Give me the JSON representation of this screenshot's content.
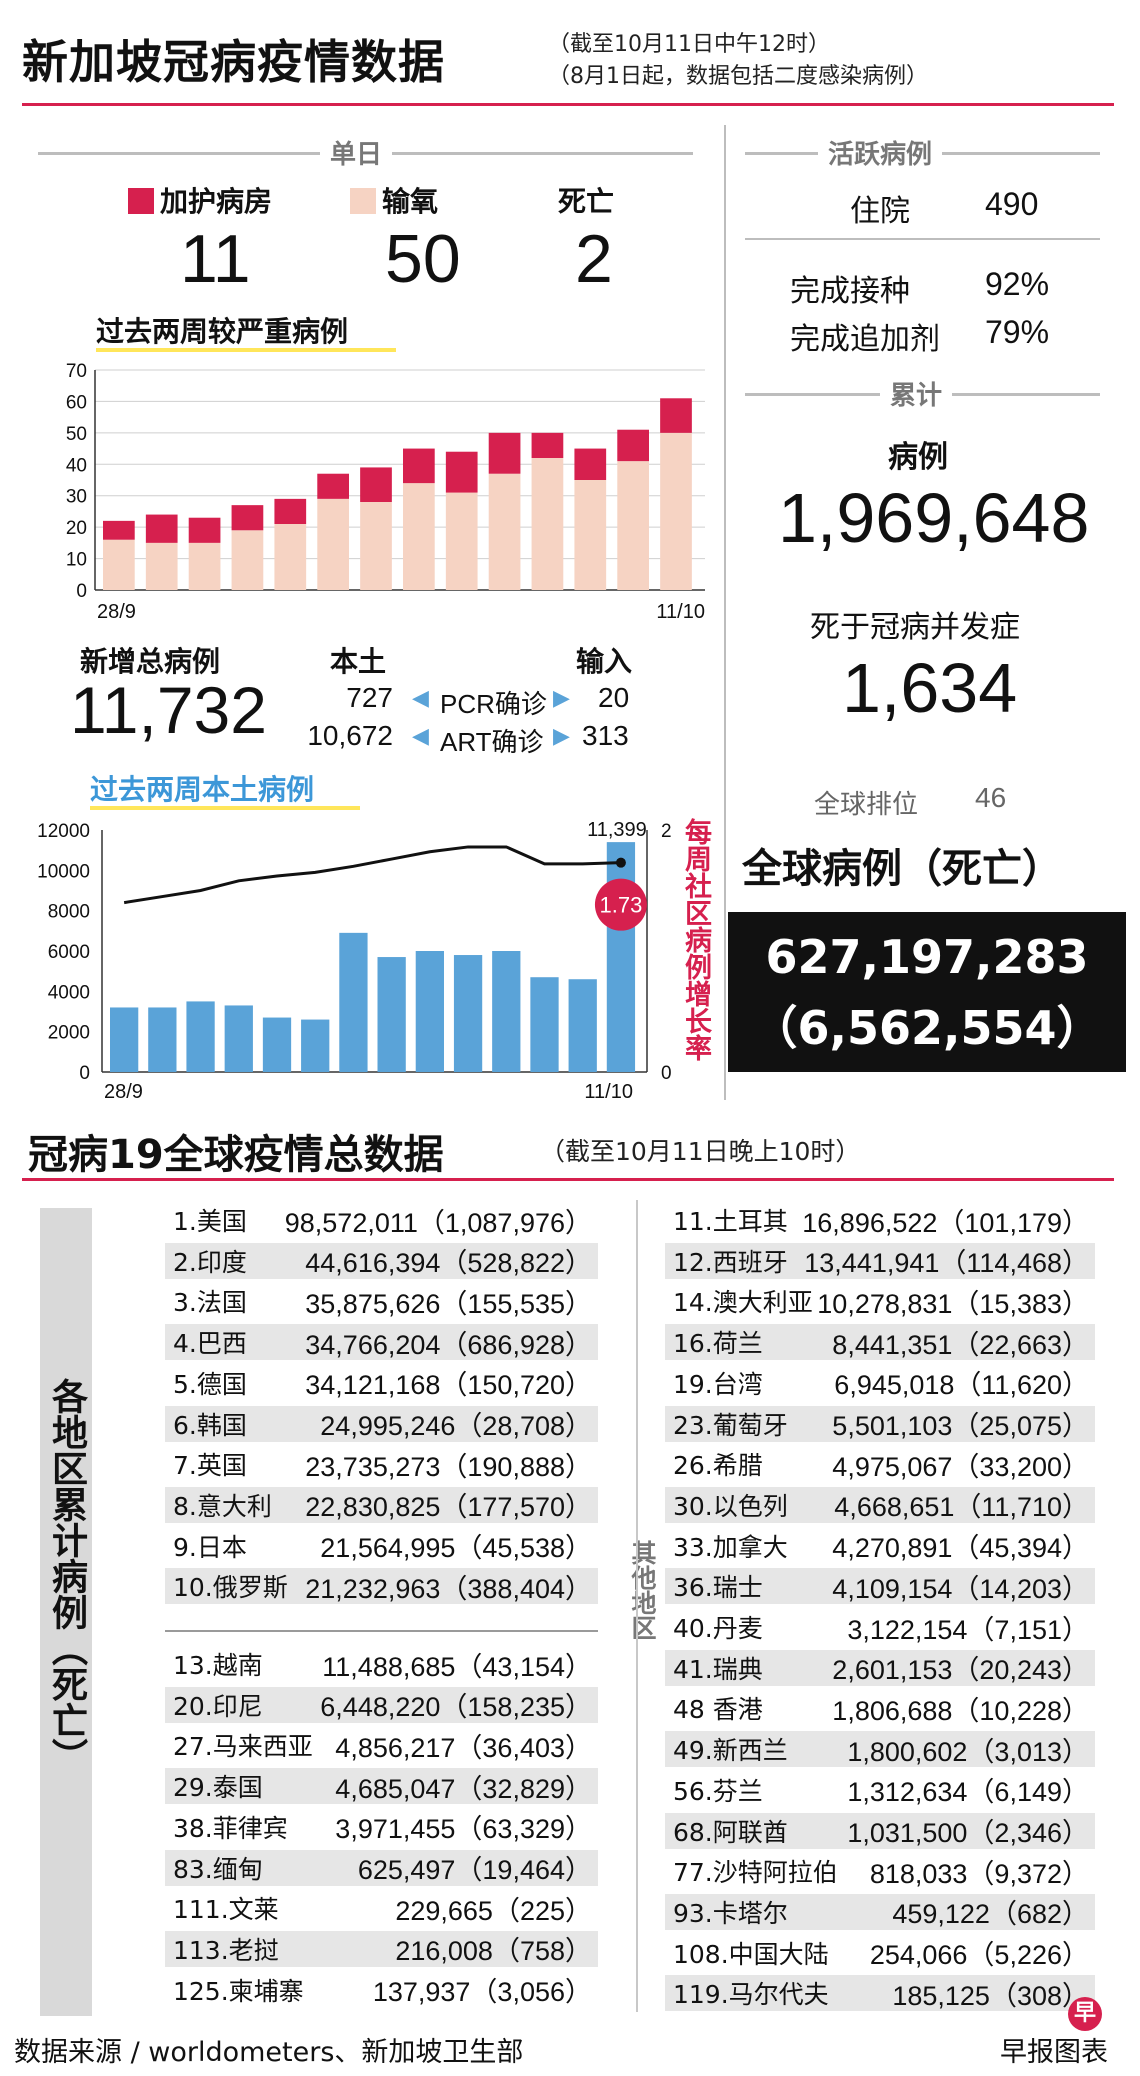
{
  "header": {
    "title": "新加坡冠病疫情数据",
    "note1": "（截至10月11日中午12时）",
    "note2": "（8月1日起，数据包括二度感染病例）"
  },
  "daily": {
    "heading": "单日",
    "icu_label": "加护病房",
    "icu_value": "11",
    "oxygen_label": "输氧",
    "oxygen_value": "50",
    "death_label": "死亡",
    "death_value": "2"
  },
  "colors": {
    "accent": "#d6204e",
    "oxygen": "#f6d3c3",
    "bar_blue": "#5aa3d8",
    "black": "#111111"
  },
  "severe_chart_title": "过去两周较严重病例",
  "local_chart_title": "过去两周本土病例",
  "growth_label": "每周社区病例增长率",
  "new_cases": {
    "label": "新增总病例",
    "value": "11,732",
    "local_label": "本土",
    "import_label": "输入",
    "pcr_label": "PCR确诊",
    "art_label": "ART确诊",
    "pcr_local": "727",
    "pcr_import": "20",
    "art_local": "10,672",
    "art_import": "313"
  },
  "active": {
    "heading": "活跃病例",
    "hosp_label": "住院",
    "hosp_value": "490",
    "vacc_label": "完成接种",
    "vacc_value": "92%",
    "booster_label": "完成追加剂",
    "booster_value": "79%"
  },
  "cumulative": {
    "heading": "累计",
    "cases_label": "病例",
    "cases_value": "1,969,648",
    "deaths_label": "死于冠病并发症",
    "deaths_value": "1,634",
    "rank_label": "全球排位",
    "rank_value": "46"
  },
  "global": {
    "label": "全球病例（死亡）",
    "cases": "627,197,283",
    "deaths": "（6,562,554）"
  },
  "world": {
    "title": "冠病19全球疫情总数据",
    "note": "（截至10月11日晚上10时）",
    "side_label": "各地区累计病例（死亡）",
    "asia_label": "亚细安",
    "other_label": "其他地区",
    "top10": [
      {
        "name": "1.美国",
        "value": "98,572,011（1,087,976）"
      },
      {
        "name": "2.印度",
        "value": "44,616,394（528,822）"
      },
      {
        "name": "3.法国",
        "value": "35,875,626（155,535）"
      },
      {
        "name": "4.巴西",
        "value": "34,766,204（686,928）"
      },
      {
        "name": "5.德国",
        "value": "34,121,168（150,720）"
      },
      {
        "name": "6.韩国",
        "value": "24,995,246（28,708）"
      },
      {
        "name": "7.英国",
        "value": "23,735,273（190,888）"
      },
      {
        "name": "8.意大利",
        "value": "22,830,825（177,570）"
      },
      {
        "name": "9.日本",
        "value": "21,564,995（45,538）"
      },
      {
        "name": "10.俄罗斯",
        "value": "21,232,963（388,404）"
      }
    ],
    "asean": [
      {
        "name": "13.越南",
        "value": "11,488,685（43,154）"
      },
      {
        "name": "20.印尼",
        "value": "6,448,220（158,235）"
      },
      {
        "name": "27.马来西亚",
        "value": "4,856,217（36,403）"
      },
      {
        "name": "29.泰国",
        "value": "4,685,047（32,829）"
      },
      {
        "name": "38.菲律宾",
        "value": "3,971,455（63,329）"
      },
      {
        "name": "83.缅甸",
        "value": "625,497（19,464）"
      },
      {
        "name": "111.文莱",
        "value": "229,665（225）"
      },
      {
        "name": "113.老挝",
        "value": "216,008（758）"
      },
      {
        "name": "125.柬埔寨",
        "value": "137,937（3,056）"
      }
    ],
    "others": [
      {
        "name": "11.土耳其",
        "value": "16,896,522（101,179）"
      },
      {
        "name": "12.西班牙",
        "value": "13,441,941（114,468）"
      },
      {
        "name": "14.澳大利亚",
        "value": "10,278,831（15,383）"
      },
      {
        "name": "16.荷兰",
        "value": "8,441,351（22,663）"
      },
      {
        "name": "19.台湾",
        "value": "6,945,018（11,620）"
      },
      {
        "name": "23.葡萄牙",
        "value": "5,501,103（25,075）"
      },
      {
        "name": "26.希腊",
        "value": "4,975,067（33,200）"
      },
      {
        "name": "30.以色列",
        "value": "4,668,651（11,710）"
      },
      {
        "name": "33.加拿大",
        "value": "4,270,891（45,394）"
      },
      {
        "name": "36.瑞士",
        "value": "4,109,154（14,203）"
      },
      {
        "name": "40.丹麦",
        "value": "3,122,154（7,151）"
      },
      {
        "name": "41.瑞典",
        "value": "2,601,153（20,243）"
      },
      {
        "name": "48 香港",
        "value": "1,806,688（10,228）"
      },
      {
        "name": "49.新西兰",
        "value": "1,800,602（3,013）"
      },
      {
        "name": "56.芬兰",
        "value": "1,312,634（6,149）"
      },
      {
        "name": "68.阿联酋",
        "value": "1,031,500（2,346）"
      },
      {
        "name": "77.沙特阿拉伯",
        "value": "818,033（9,372）"
      },
      {
        "name": "93.卡塔尔",
        "value": "459,122（682）"
      },
      {
        "name": "108.中国大陆",
        "value": "254,066（5,226）"
      },
      {
        "name": "119.马尔代夫",
        "value": "185,125（308）"
      }
    ]
  },
  "footer": {
    "source": "数据来源 / worldometers、新加坡卫生部",
    "credit": "早报图表",
    "logo": "早"
  },
  "chart_data": [
    {
      "type": "bar",
      "title": "过去两周较严重病例",
      "stacked": true,
      "x_start": "28/9",
      "x_end": "11/10",
      "ylim": [
        0,
        70
      ],
      "yticks": [
        "0",
        "10",
        "20",
        "30",
        "40",
        "50",
        "60",
        "70"
      ],
      "series": [
        {
          "name": "输氧",
          "values": [
            16,
            15,
            15,
            19,
            21,
            29,
            28,
            34,
            31,
            37,
            42,
            35,
            41,
            50
          ]
        },
        {
          "name": "加护病房",
          "values": [
            6,
            9,
            8,
            8,
            8,
            8,
            11,
            11,
            13,
            13,
            8,
            10,
            10,
            11
          ]
        }
      ]
    },
    {
      "type": "bar",
      "title": "过去两周本土病例",
      "x_start": "28/9",
      "x_end": "11/10",
      "ylim": [
        0,
        12000
      ],
      "yticks": [
        "0",
        "2000",
        "4000",
        "6000",
        "8000",
        "10000",
        "12000"
      ],
      "values": [
        3200,
        3200,
        3500,
        3300,
        2700,
        2600,
        6900,
        5700,
        6000,
        5800,
        6000,
        4700,
        4600,
        11399
      ],
      "last_label": "11,399",
      "line": {
        "name": "每周社区病例增长率",
        "ylim": [
          0,
          2
        ],
        "yticks": [
          "0",
          "2"
        ],
        "values": [
          1.4,
          1.45,
          1.5,
          1.58,
          1.62,
          1.65,
          1.7,
          1.76,
          1.82,
          1.86,
          1.86,
          1.72,
          1.72,
          1.73
        ],
        "last_label": "1.73"
      }
    }
  ]
}
